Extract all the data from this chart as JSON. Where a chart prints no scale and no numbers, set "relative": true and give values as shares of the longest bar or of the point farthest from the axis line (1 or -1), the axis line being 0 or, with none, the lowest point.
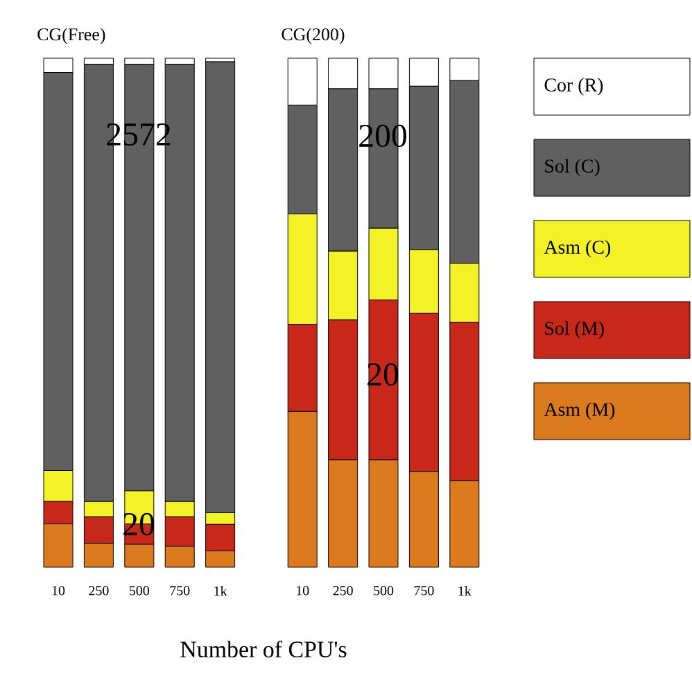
{
  "chart_data": [
    {
      "type": "bar",
      "title": "CG(Free)",
      "xlabel": "Number of CPU's",
      "stacked": true,
      "relative": true,
      "categories": [
        "10",
        "250",
        "500",
        "750",
        "1k"
      ],
      "series": [
        {
          "color": "#dc7a20",
          "values": [
            0.085,
            0.047,
            0.045,
            0.041,
            0.032
          ]
        },
        {
          "color": "#c8281a",
          "values": [
            0.044,
            0.052,
            0.04,
            0.058,
            0.052
          ]
        },
        {
          "color": "#f2f226",
          "values": [
            0.061,
            0.03,
            0.065,
            0.03,
            0.023
          ]
        },
        {
          "color": "#606060",
          "values": [
            0.782,
            0.859,
            0.838,
            0.859,
            0.886
          ]
        },
        {
          "color": "#ffffff",
          "values": [
            0.028,
            0.012,
            0.012,
            0.012,
            0.007
          ]
        }
      ],
      "annotations": [
        "2572",
        "20"
      ]
    },
    {
      "type": "bar",
      "title": "CG(200)",
      "stacked": true,
      "relative": true,
      "legend": "right",
      "categories": [
        "10",
        "250",
        "500",
        "750",
        "1k"
      ],
      "series": [
        {
          "name": "Asm (M)",
          "color": "#dc7a20",
          "values": [
            0.306,
            0.211,
            0.211,
            0.188,
            0.17
          ]
        },
        {
          "name": "Sol (M)",
          "color": "#c8281a",
          "values": [
            0.171,
            0.275,
            0.314,
            0.311,
            0.311
          ]
        },
        {
          "name": "Asm (C)",
          "color": "#f2f226",
          "values": [
            0.217,
            0.135,
            0.141,
            0.125,
            0.116
          ]
        },
        {
          "name": "Sol (C)",
          "color": "#606060",
          "values": [
            0.214,
            0.319,
            0.274,
            0.321,
            0.359
          ]
        },
        {
          "name": "Cor (R)",
          "color": "#ffffff",
          "values": [
            0.092,
            0.06,
            0.06,
            0.055,
            0.044
          ]
        }
      ],
      "annotations": [
        "200",
        "20"
      ]
    }
  ]
}
